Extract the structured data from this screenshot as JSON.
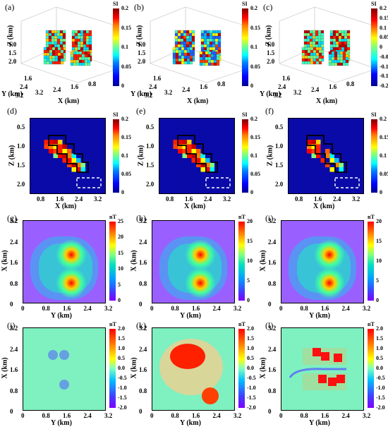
{
  "panels": [
    {
      "label": "(a)",
      "type": "3d-voxel",
      "unit": "SI",
      "ticks": [
        "0.2",
        "0.15",
        "0.1",
        "0.05",
        "0"
      ],
      "x_label": "X (km)",
      "y_label": "Y (km)",
      "z_label": "Z (km)",
      "x_ticks": [
        "3.2",
        "2.4",
        "1.6",
        "0.8"
      ],
      "y_ticks": [
        "3.2",
        "2.4",
        "1.6"
      ],
      "z_ticks": [
        "1.0",
        "1.5",
        "2.0"
      ]
    },
    {
      "label": "(b)",
      "type": "3d-voxel",
      "unit": "SI",
      "ticks": [
        "0.2",
        "0.15",
        "0.1",
        "0.05",
        "0"
      ],
      "x_label": "X (km)",
      "y_label": "Y (km)",
      "z_label": "Z (km)",
      "x_ticks": [
        "3.2",
        "2.4",
        "1.6",
        "0.8"
      ],
      "y_ticks": [
        "3.2",
        "2.4",
        "1.6"
      ],
      "z_ticks": [
        "1.0",
        "1.5",
        "2.0"
      ]
    },
    {
      "label": "(c)",
      "type": "3d-voxel",
      "unit": "SI",
      "ticks": [
        "0.2",
        "0.15",
        "0.1",
        "0.05",
        "0",
        "-0.05",
        "-0.1",
        "-0.15",
        "-0.2"
      ],
      "x_label": "X (km)",
      "y_label": "Y (km)",
      "z_label": "Z (km)",
      "x_ticks": [
        "3.2",
        "2.4",
        "1.6",
        "0.8"
      ],
      "y_ticks": [
        "3.2",
        "2.4",
        "1.6"
      ],
      "z_ticks": [
        "1.0",
        "1.5",
        "2.0"
      ]
    },
    {
      "label": "(d)",
      "type": "section",
      "unit": "SI",
      "ticks": [
        "0.2",
        "0.15",
        "0.1",
        "0.05",
        "0"
      ],
      "x_label": "X (km)",
      "y_label": "Z (km)",
      "x_ticks": [
        "0.8",
        "1.6",
        "2.4",
        "3.2"
      ],
      "y_ticks": [
        "0.5",
        "1.0",
        "1.5",
        "2.0"
      ]
    },
    {
      "label": "(e)",
      "type": "section",
      "unit": "SI",
      "ticks": [
        "0.2",
        "0.15",
        "0.1",
        "0.05",
        "0"
      ],
      "x_label": "X (km)",
      "y_label": "Z (km)",
      "x_ticks": [
        "0.8",
        "1.6",
        "2.4",
        "3.2"
      ],
      "y_ticks": [
        "0.5",
        "1.0",
        "1.5",
        "2.0"
      ]
    },
    {
      "label": "(f)",
      "type": "section",
      "unit": "SI",
      "ticks": [
        "0.2",
        "0.15",
        "0.1",
        "0.05",
        "0"
      ],
      "x_label": "X (km)",
      "y_label": "Z (km)",
      "x_ticks": [
        "0.8",
        "1.6",
        "2.4",
        "3.2"
      ],
      "y_ticks": [
        "0.5",
        "1.0",
        "1.5",
        "2.0"
      ]
    },
    {
      "label": "(g)",
      "type": "map",
      "unit": "nT",
      "ticks": [
        "25",
        "20",
        "15",
        "10",
        "5",
        "0"
      ],
      "x_label": "Y (km)",
      "y_label": "X (km)",
      "x_ticks": [
        "0",
        "0.8",
        "1.6",
        "2.4",
        "3.2"
      ],
      "y_ticks": [
        "3.2",
        "2.4",
        "1.6",
        "0.8",
        "0"
      ]
    },
    {
      "label": "(h)",
      "type": "map",
      "unit": "nT",
      "ticks": [
        "20",
        "15",
        "10",
        "5",
        "0"
      ],
      "x_label": "Y (km)",
      "y_label": "X (km)",
      "x_ticks": [
        "0",
        "0.8",
        "1.6",
        "2.4",
        "3.2"
      ],
      "y_ticks": [
        "3.2",
        "2.4",
        "1.6",
        "0.8",
        "0"
      ]
    },
    {
      "label": "(i)",
      "type": "map",
      "unit": "nT",
      "ticks": [
        "20",
        "15",
        "10",
        "5",
        "0"
      ],
      "x_label": "Y (km)",
      "y_label": "X (km)",
      "x_ticks": [
        "0",
        "0.8",
        "1.6",
        "2.4",
        "3.2"
      ],
      "y_ticks": [
        "3.2",
        "2.4",
        "1.6",
        "0.8",
        "0"
      ]
    },
    {
      "label": "(j)",
      "type": "residual",
      "unit": "nT",
      "ticks": [
        "2.0",
        "1.5",
        "1.0",
        "0.5",
        "0.0",
        "-0.5",
        "-1.0",
        "-1.5",
        "-2.0"
      ],
      "x_label": "Y (km)",
      "y_label": "X (km)",
      "x_ticks": [
        "0",
        "0.8",
        "1.6",
        "2.4",
        "3.2"
      ],
      "y_ticks": [
        "3.2",
        "2.4",
        "1.6",
        "0.8",
        "0"
      ]
    },
    {
      "label": "(k)",
      "type": "residual",
      "unit": "nT",
      "ticks": [
        "2.0",
        "1.5",
        "1.0",
        "0.5",
        "0.0",
        "-0.5",
        "-1.0",
        "-1.5",
        "-2.0"
      ],
      "x_label": "Y (km)",
      "y_label": "X (km)",
      "x_ticks": [
        "0",
        "0.8",
        "1.6",
        "2.4",
        "3.2"
      ],
      "y_ticks": [
        "3.2",
        "2.4",
        "1.6",
        "0.8",
        "0"
      ]
    },
    {
      "label": "(l)",
      "type": "residual",
      "unit": "nT",
      "ticks": [
        "2.0",
        "1.5",
        "1.0",
        "0.5",
        "0.0",
        "-0.5",
        "-1.0",
        "-1.5",
        "-2.0"
      ],
      "x_label": "Y (km)",
      "y_label": "X (km)",
      "x_ticks": [
        "0",
        "0.8",
        "1.6",
        "2.4",
        "3.2"
      ],
      "y_ticks": [
        "3.2",
        "2.4",
        "1.6",
        "0.8",
        "0"
      ]
    }
  ],
  "chart_data": [
    {
      "type": "heatmap",
      "panel": "(a)",
      "title": "",
      "zlabel": "SI",
      "zlim": [
        0,
        0.2
      ]
    },
    {
      "type": "heatmap",
      "panel": "(b)",
      "title": "",
      "zlabel": "SI",
      "zlim": [
        0,
        0.2
      ]
    },
    {
      "type": "heatmap",
      "panel": "(c)",
      "title": "",
      "zlabel": "SI",
      "zlim": [
        -0.2,
        0.2
      ]
    },
    {
      "type": "heatmap",
      "panel": "(d)",
      "xlabel": "X (km)",
      "ylabel": "Z (km)",
      "zlim": [
        0,
        0.2
      ],
      "xlim": [
        0.4,
        3.2
      ],
      "ylim": [
        2.2,
        0.2
      ]
    },
    {
      "type": "heatmap",
      "panel": "(e)",
      "xlabel": "X (km)",
      "ylabel": "Z (km)",
      "zlim": [
        0,
        0.2
      ],
      "xlim": [
        0.4,
        3.2
      ],
      "ylim": [
        2.2,
        0.2
      ]
    },
    {
      "type": "heatmap",
      "panel": "(f)",
      "xlabel": "X (km)",
      "ylabel": "Z (km)",
      "zlim": [
        0,
        0.2
      ],
      "xlim": [
        0.4,
        3.2
      ],
      "ylim": [
        2.2,
        0.2
      ]
    },
    {
      "type": "heatmap",
      "panel": "(g)",
      "xlabel": "Y (km)",
      "ylabel": "X (km)",
      "zlim": [
        -2,
        27
      ],
      "xlim": [
        0,
        3.2
      ],
      "ylim": [
        0,
        3.2
      ],
      "peaks": [
        {
          "y": 1.85,
          "x": 1.9,
          "value": 27
        },
        {
          "y": 1.85,
          "x": 0.75,
          "value": 27
        }
      ]
    },
    {
      "type": "heatmap",
      "panel": "(h)",
      "xlabel": "Y (km)",
      "ylabel": "X (km)",
      "zlim": [
        -2,
        21
      ],
      "xlim": [
        0,
        3.2
      ],
      "ylim": [
        0,
        3.2
      ],
      "peaks": [
        {
          "y": 1.85,
          "x": 1.9,
          "value": 21
        },
        {
          "y": 1.85,
          "x": 0.75,
          "value": 21
        }
      ]
    },
    {
      "type": "heatmap",
      "panel": "(i)",
      "xlabel": "Y (km)",
      "ylabel": "X (km)",
      "zlim": [
        -2,
        22
      ],
      "xlim": [
        0,
        3.2
      ],
      "ylim": [
        0,
        3.2
      ],
      "peaks": [
        {
          "y": 1.85,
          "x": 1.9,
          "value": 22
        },
        {
          "y": 1.85,
          "x": 0.75,
          "value": 22
        }
      ]
    },
    {
      "type": "heatmap",
      "panel": "(j)",
      "xlabel": "Y (km)",
      "ylabel": "X (km)",
      "zlim": [
        -2,
        2
      ],
      "xlim": [
        0,
        3.2
      ],
      "ylim": [
        0,
        3.2
      ]
    },
    {
      "type": "heatmap",
      "panel": "(k)",
      "xlabel": "Y (km)",
      "ylabel": "X (km)",
      "zlim": [
        -2,
        2
      ],
      "xlim": [
        0,
        3.2
      ],
      "ylim": [
        0,
        3.2
      ]
    },
    {
      "type": "heatmap",
      "panel": "(l)",
      "xlabel": "Y (km)",
      "ylabel": "X (km)",
      "zlim": [
        -2,
        2
      ],
      "xlim": [
        0,
        3.2
      ],
      "ylim": [
        0,
        3.2
      ]
    }
  ]
}
